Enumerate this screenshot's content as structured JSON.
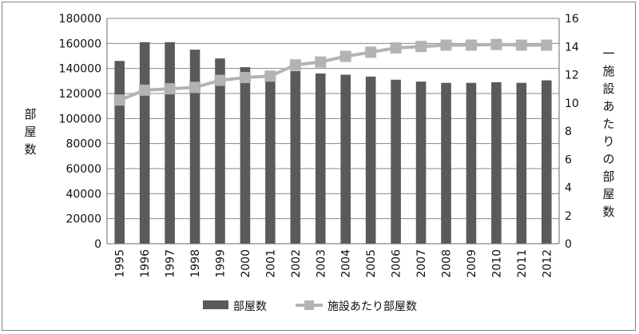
{
  "chart_data": {
    "type": "bar+line",
    "categories": [
      "1995",
      "1996",
      "1997",
      "1998",
      "1999",
      "2000",
      "2001",
      "2002",
      "2003",
      "2004",
      "2005",
      "2006",
      "2007",
      "2008",
      "2009",
      "2010",
      "2011",
      "2012"
    ],
    "series": [
      {
        "name": "部屋数",
        "kind": "bar",
        "axis": "left",
        "color": "#5a5a5a",
        "values": [
          146000,
          161000,
          161000,
          155000,
          148000,
          141000,
          137000,
          138000,
          136000,
          135000,
          133500,
          131000,
          129500,
          128500,
          128500,
          129000,
          128500,
          130500
        ]
      },
      {
        "name": "施設あたり部屋数",
        "kind": "line",
        "axis": "right",
        "color": "#b3b3b3",
        "values": [
          10.2,
          10.9,
          11.0,
          11.1,
          11.6,
          11.8,
          11.9,
          12.7,
          12.9,
          13.3,
          13.6,
          13.9,
          14.0,
          14.1,
          14.1,
          14.15,
          14.1,
          14.1
        ]
      }
    ],
    "ylabel": "部屋数",
    "y2label": "一施設あたりの部屋数",
    "ylim": [
      0,
      180000
    ],
    "y2lim": [
      0,
      16
    ],
    "yticks": [
      "0",
      "20000",
      "40000",
      "60000",
      "80000",
      "100000",
      "120000",
      "140000",
      "160000",
      "180000"
    ],
    "y2ticks": [
      "0",
      "2",
      "4",
      "6",
      "8",
      "10",
      "12",
      "14",
      "16"
    ],
    "grid": "horizontal",
    "legend": "bottom"
  }
}
